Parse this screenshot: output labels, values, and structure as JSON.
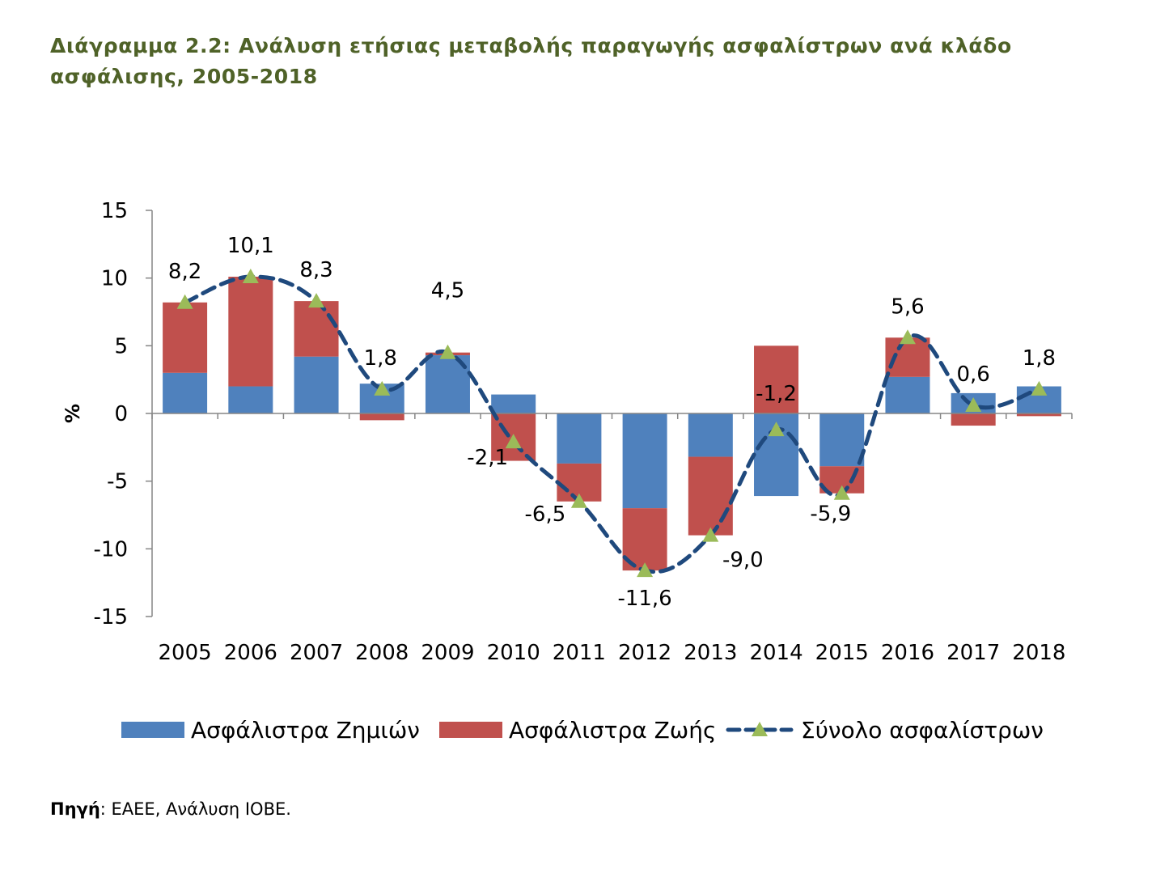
{
  "title": "Διάγραμμα 2.2: Ανάλυση ετήσιας μεταβολής παραγωγής ασφαλίστρων ανά κλάδο ασφάλισης, 2005-2018",
  "source": {
    "label": "Πηγή",
    "text": ": ΕΑΕΕ, Ανάλυση ΙΟΒΕ."
  },
  "colors": {
    "series_damages": "#4f81bd",
    "series_life": "#c0504d",
    "series_total_line": "#1f497d",
    "series_total_marker": "#9bbb59",
    "title": "#4f6228"
  },
  "chart_data": {
    "type": "bar",
    "stacked": true,
    "title": "",
    "xlabel": "",
    "ylabel": "%",
    "ylim": [
      -15,
      15
    ],
    "yticks": [
      15,
      10,
      5,
      0,
      -5,
      -10,
      -15
    ],
    "ytick_labels": [
      "15",
      "10",
      "5",
      "0",
      "-5",
      "-10",
      "-15"
    ],
    "grid": false,
    "legend_position": "bottom",
    "categories": [
      "2005",
      "2006",
      "2007",
      "2008",
      "2009",
      "2010",
      "2011",
      "2012",
      "2013",
      "2014",
      "2015",
      "2016",
      "2017",
      "2018"
    ],
    "series": [
      {
        "name": "Ασφάλιστρα Ζημιών",
        "kind": "bar",
        "values": [
          3.0,
          2.0,
          4.2,
          2.2,
          4.3,
          1.4,
          -3.7,
          -7.0,
          -3.2,
          -6.1,
          -3.9,
          2.7,
          1.5,
          2.0
        ]
      },
      {
        "name": "Ασφάλιστρα Ζωής",
        "kind": "bar",
        "values": [
          5.2,
          8.1,
          4.1,
          -0.5,
          0.2,
          -3.5,
          -2.8,
          -4.6,
          -5.8,
          5.0,
          -2.0,
          2.9,
          -0.9,
          -0.2
        ]
      },
      {
        "name": "Σύνολο ασφαλίστρων",
        "kind": "line",
        "style": "dashed",
        "marker": "triangle",
        "values": [
          8.2,
          10.1,
          8.3,
          1.8,
          4.5,
          -2.1,
          -6.5,
          -11.6,
          -9.0,
          -1.2,
          -5.9,
          5.6,
          0.6,
          1.8
        ]
      }
    ],
    "data_labels": [
      "8,2",
      "10,1",
      "8,3",
      "1,8",
      "4,5",
      "-2,1",
      "-6,5",
      "-11,6",
      "-9,0",
      "-1,2",
      "-5,9",
      "5,6",
      "0,6",
      "1,8"
    ]
  }
}
